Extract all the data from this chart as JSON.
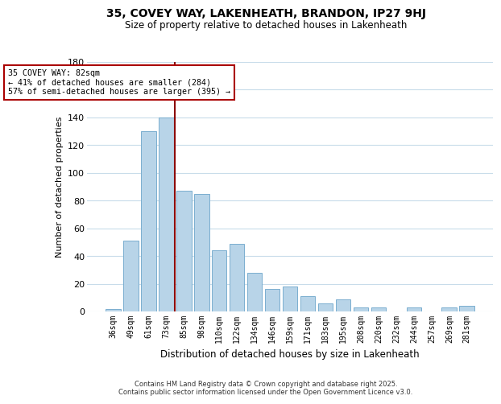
{
  "title": "35, COVEY WAY, LAKENHEATH, BRANDON, IP27 9HJ",
  "subtitle": "Size of property relative to detached houses in Lakenheath",
  "xlabel": "Distribution of detached houses by size in Lakenheath",
  "ylabel": "Number of detached properties",
  "categories": [
    "36sqm",
    "49sqm",
    "61sqm",
    "73sqm",
    "85sqm",
    "98sqm",
    "110sqm",
    "122sqm",
    "134sqm",
    "146sqm",
    "159sqm",
    "171sqm",
    "183sqm",
    "195sqm",
    "208sqm",
    "220sqm",
    "232sqm",
    "244sqm",
    "257sqm",
    "269sqm",
    "281sqm"
  ],
  "values": [
    2,
    51,
    130,
    140,
    87,
    85,
    44,
    49,
    28,
    16,
    18,
    11,
    6,
    9,
    3,
    3,
    0,
    3,
    0,
    3,
    4
  ],
  "bar_color": "#b8d4e8",
  "bar_edge_color": "#7aaecf",
  "vline_x": 3.5,
  "vline_color": "#8b0000",
  "ylim": [
    0,
    180
  ],
  "yticks": [
    0,
    20,
    40,
    60,
    80,
    100,
    120,
    140,
    160,
    180
  ],
  "annotation_title": "35 COVEY WAY: 82sqm",
  "annotation_line1": "← 41% of detached houses are smaller (284)",
  "annotation_line2": "57% of semi-detached houses are larger (395) →",
  "annotation_box_color": "#ffffff",
  "annotation_box_edge_color": "#aa0000",
  "footer_line1": "Contains HM Land Registry data © Crown copyright and database right 2025.",
  "footer_line2": "Contains public sector information licensed under the Open Government Licence v3.0.",
  "background_color": "#ffffff",
  "grid_color": "#c8dcea"
}
